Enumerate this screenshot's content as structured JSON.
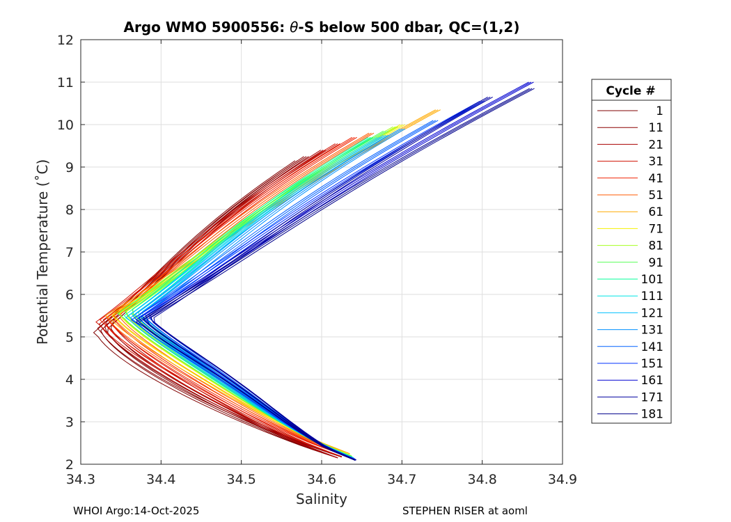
{
  "chart_data": {
    "type": "line",
    "title_prefix": "Argo WMO 5900556: ",
    "title_theta": "θ",
    "title_suffix": "-S below 500 dbar,  QC=(1,2)",
    "xlabel": "Salinity",
    "ylabel": "Potential Temperature (˚C)",
    "xlim": [
      34.3,
      34.9
    ],
    "ylim": [
      2,
      12
    ],
    "xticks": [
      "34.3",
      "34.4",
      "34.5",
      "34.6",
      "34.7",
      "34.8",
      "34.9"
    ],
    "yticks": [
      "2",
      "3",
      "4",
      "5",
      "6",
      "7",
      "8",
      "9",
      "10",
      "11",
      "12"
    ],
    "grid": true,
    "legend_title": "Cycle #",
    "legend_position": "right",
    "series": [
      {
        "name": "1",
        "color": "#800000",
        "min_s": 34.325,
        "min_t": 5.15,
        "top_s": 34.57,
        "top_t": 9.15,
        "bot_s": 34.62,
        "bot_t": 2.15,
        "bulge": 0.0
      },
      {
        "name": "11",
        "color": "#8b0000",
        "min_s": 34.327,
        "min_t": 5.25,
        "top_s": 34.58,
        "top_t": 9.25,
        "bot_s": 34.625,
        "bot_t": 2.17,
        "bulge": 0.0
      },
      {
        "name": "21",
        "color": "#a80000",
        "min_s": 34.326,
        "min_t": 5.35,
        "top_s": 34.6,
        "top_t": 9.4,
        "bot_s": 34.62,
        "bot_t": 2.15,
        "bulge": 0.01
      },
      {
        "name": "31",
        "color": "#d01000",
        "min_s": 34.328,
        "min_t": 5.4,
        "top_s": 34.62,
        "top_t": 9.55,
        "bot_s": 34.625,
        "bot_t": 2.18,
        "bulge": 0.015
      },
      {
        "name": "41",
        "color": "#f02000",
        "min_s": 34.33,
        "min_t": 5.45,
        "top_s": 34.64,
        "top_t": 9.7,
        "bot_s": 34.63,
        "bot_t": 2.2,
        "bulge": 0.02
      },
      {
        "name": "51",
        "color": "#ff5a00",
        "min_s": 34.335,
        "min_t": 5.5,
        "top_s": 34.66,
        "top_t": 9.8,
        "bot_s": 34.632,
        "bot_t": 2.22,
        "bulge": 0.025
      },
      {
        "name": "61",
        "color": "#ffaa00",
        "min_s": 34.34,
        "min_t": 5.55,
        "top_s": 34.745,
        "top_t": 10.35,
        "bot_s": 34.635,
        "bot_t": 2.25,
        "bulge": 0.03
      },
      {
        "name": "71",
        "color": "#f5f000",
        "min_s": 34.345,
        "min_t": 5.55,
        "top_s": 34.7,
        "top_t": 10.0,
        "bot_s": 34.635,
        "bot_t": 2.22,
        "bulge": 0.032
      },
      {
        "name": "81",
        "color": "#a6ff20",
        "min_s": 34.35,
        "min_t": 5.6,
        "top_s": 34.69,
        "top_t": 9.95,
        "bot_s": 34.637,
        "bot_t": 2.2,
        "bulge": 0.034
      },
      {
        "name": "91",
        "color": "#55ff55",
        "min_s": 34.355,
        "min_t": 5.6,
        "top_s": 34.68,
        "top_t": 9.85,
        "bot_s": 34.638,
        "bot_t": 2.18,
        "bulge": 0.036
      },
      {
        "name": "101",
        "color": "#00ff9a",
        "min_s": 34.36,
        "min_t": 5.55,
        "top_s": 34.66,
        "top_t": 9.7,
        "bot_s": 34.638,
        "bot_t": 2.16,
        "bulge": 0.038
      },
      {
        "name": "111",
        "color": "#00e6e6",
        "min_s": 34.362,
        "min_t": 5.55,
        "top_s": 34.67,
        "top_t": 9.7,
        "bot_s": 34.64,
        "bot_t": 2.15,
        "bulge": 0.04
      },
      {
        "name": "121",
        "color": "#00c0ff",
        "min_s": 34.365,
        "min_t": 5.5,
        "top_s": 34.68,
        "top_t": 9.75,
        "bot_s": 34.64,
        "bot_t": 2.14,
        "bulge": 0.042
      },
      {
        "name": "131",
        "color": "#0090ff",
        "min_s": 34.368,
        "min_t": 5.5,
        "top_s": 34.7,
        "top_t": 9.9,
        "bot_s": 34.64,
        "bot_t": 2.13,
        "bulge": 0.044
      },
      {
        "name": "141",
        "color": "#0060ff",
        "min_s": 34.37,
        "min_t": 5.5,
        "top_s": 34.74,
        "top_t": 10.1,
        "bot_s": 34.642,
        "bot_t": 2.12,
        "bulge": 0.046
      },
      {
        "name": "151",
        "color": "#0030ff",
        "min_s": 34.372,
        "min_t": 5.45,
        "top_s": 34.8,
        "top_t": 10.55,
        "bot_s": 34.642,
        "bot_t": 2.11,
        "bulge": 0.05
      },
      {
        "name": "161",
        "color": "#0000d0",
        "min_s": 34.375,
        "min_t": 5.45,
        "top_s": 34.86,
        "top_t": 11.0,
        "bot_s": 34.643,
        "bot_t": 2.1,
        "bulge": 0.052
      },
      {
        "name": "171",
        "color": "#0000a0",
        "min_s": 34.376,
        "min_t": 5.4,
        "top_s": 34.808,
        "top_t": 10.65,
        "bot_s": 34.643,
        "bot_t": 2.1,
        "bulge": 0.054
      },
      {
        "name": "181",
        "color": "#00008b",
        "min_s": 34.378,
        "min_t": 5.4,
        "top_s": 34.862,
        "top_t": 10.85,
        "bot_s": 34.642,
        "bot_t": 2.09,
        "bulge": 0.056
      }
    ]
  },
  "footer": {
    "left": "WHOI Argo:14-Oct-2025",
    "right": "STEPHEN RISER at aoml"
  }
}
